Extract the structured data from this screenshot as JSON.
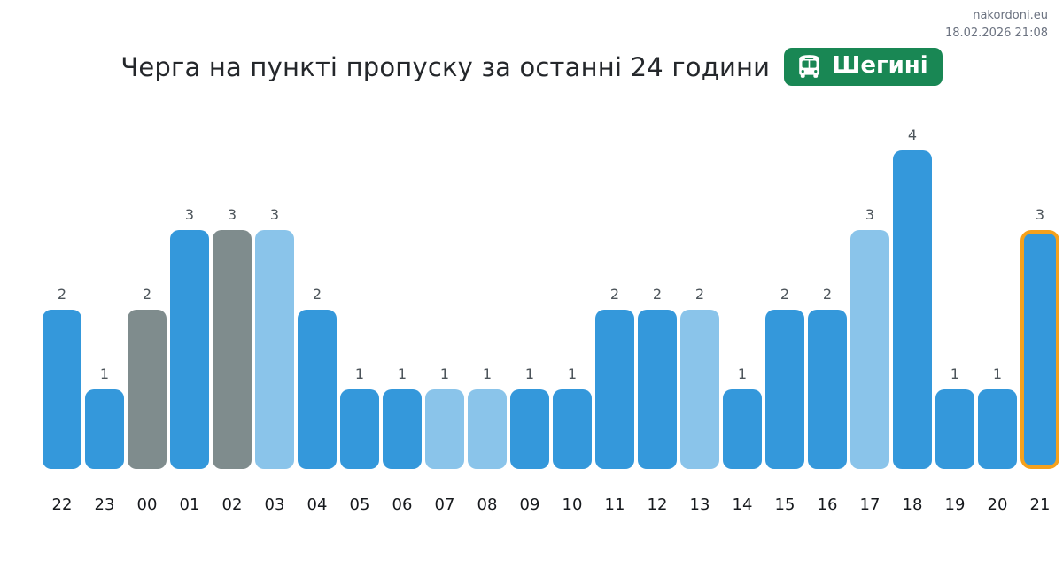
{
  "meta": {
    "site": "nakordoni.eu",
    "timestamp": "18.02.2026 21:08"
  },
  "title": "Черга на пункті пропуску за останні 24 години",
  "badge": {
    "label": "Шегині",
    "icon": "bus-icon",
    "background": "#198754",
    "text_color": "#ffffff"
  },
  "chart_data": {
    "type": "bar",
    "title": "Черга на пункті пропуску за останні 24 години",
    "xlabel": "",
    "ylabel": "",
    "categories": [
      "22",
      "23",
      "00",
      "01",
      "02",
      "03",
      "04",
      "05",
      "06",
      "07",
      "08",
      "09",
      "10",
      "11",
      "12",
      "13",
      "14",
      "15",
      "16",
      "17",
      "18",
      "19",
      "20",
      "21"
    ],
    "values": [
      2,
      1,
      2,
      3,
      3,
      3,
      2,
      1,
      1,
      1,
      1,
      1,
      1,
      2,
      2,
      2,
      1,
      2,
      2,
      3,
      4,
      1,
      1,
      3
    ],
    "bar_variants": [
      "primary",
      "primary",
      "muted",
      "primary",
      "muted",
      "light",
      "primary",
      "primary",
      "primary",
      "light",
      "light",
      "primary",
      "primary",
      "primary",
      "primary",
      "light",
      "primary",
      "primary",
      "primary",
      "light",
      "primary",
      "primary",
      "primary",
      "primary"
    ],
    "highlighted_index": 23,
    "value_labels_shown": true,
    "grid": false,
    "legend": false,
    "ylim": [
      0,
      4
    ],
    "colors": {
      "primary": "#3498db",
      "light": "#8ac4ea",
      "muted": "#7f8c8d",
      "highlight_border": "#f5a11c",
      "value_label": "#4d555b",
      "axis_label": "#16191d"
    }
  }
}
